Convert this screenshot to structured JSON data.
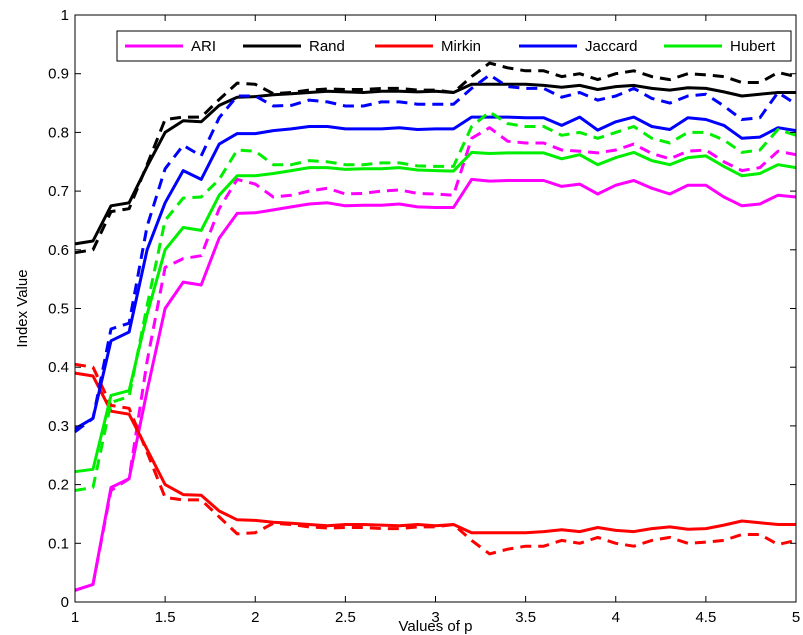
{
  "chart_data": {
    "type": "line",
    "xlabel": "Values of p",
    "ylabel": "Index Value",
    "xlim": [
      1,
      5
    ],
    "ylim": [
      0,
      1
    ],
    "x_ticks": [
      1,
      1.5,
      2,
      2.5,
      3,
      3.5,
      4,
      4.5,
      5
    ],
    "x_tick_labels": [
      "1",
      "1.5",
      "2",
      "2.5",
      "3",
      "3.5",
      "4",
      "4.5",
      "5"
    ],
    "y_ticks": [
      0,
      0.1,
      0.2,
      0.3,
      0.4,
      0.5,
      0.6,
      0.7,
      0.8,
      0.9,
      1
    ],
    "y_tick_labels": [
      "0",
      "0.1",
      "0.2",
      "0.3",
      "0.4",
      "0.5",
      "0.6",
      "0.7",
      "0.8",
      "0.9",
      "1"
    ],
    "grid": false,
    "legend_position": "top",
    "x": [
      1.0,
      1.1,
      1.2,
      1.3,
      1.4,
      1.5,
      1.6,
      1.7,
      1.8,
      1.9,
      2.0,
      2.1,
      2.2,
      2.3,
      2.4,
      2.5,
      2.6,
      2.7,
      2.8,
      2.9,
      3.0,
      3.1,
      3.2,
      3.3,
      3.4,
      3.5,
      3.6,
      3.7,
      3.8,
      3.9,
      4.0,
      4.1,
      4.2,
      4.3,
      4.4,
      4.5,
      4.6,
      4.7,
      4.8,
      4.9,
      5.0
    ],
    "series": [
      {
        "name": "ARI",
        "color": "#ff00ff",
        "style": "solid",
        "values": [
          0.02,
          0.03,
          0.195,
          0.21,
          0.36,
          0.5,
          0.545,
          0.54,
          0.62,
          0.662,
          0.663,
          0.668,
          0.673,
          0.678,
          0.68,
          0.675,
          0.676,
          0.676,
          0.678,
          0.673,
          0.672,
          0.672,
          0.72,
          0.717,
          0.718,
          0.718,
          0.718,
          0.708,
          0.712,
          0.695,
          0.71,
          0.718,
          0.705,
          0.695,
          0.71,
          0.71,
          0.69,
          0.675,
          0.678,
          0.693,
          0.69
        ]
      },
      {
        "name": "",
        "color": "#ff00ff",
        "style": "dashed",
        "values": [
          0.02,
          0.03,
          0.19,
          0.21,
          0.41,
          0.57,
          0.585,
          0.59,
          0.67,
          0.72,
          0.712,
          0.69,
          0.693,
          0.7,
          0.705,
          0.695,
          0.696,
          0.7,
          0.702,
          0.696,
          0.695,
          0.693,
          0.79,
          0.808,
          0.785,
          0.782,
          0.782,
          0.77,
          0.768,
          0.765,
          0.77,
          0.78,
          0.764,
          0.755,
          0.768,
          0.77,
          0.75,
          0.735,
          0.74,
          0.768,
          0.762
        ]
      },
      {
        "name": "Rand",
        "color": "#000000",
        "style": "solid",
        "values": [
          0.61,
          0.615,
          0.675,
          0.68,
          0.742,
          0.8,
          0.82,
          0.818,
          0.846,
          0.86,
          0.861,
          0.864,
          0.866,
          0.868,
          0.87,
          0.869,
          0.868,
          0.87,
          0.87,
          0.869,
          0.87,
          0.868,
          0.882,
          0.882,
          0.882,
          0.882,
          0.88,
          0.877,
          0.88,
          0.873,
          0.878,
          0.88,
          0.875,
          0.872,
          0.876,
          0.875,
          0.869,
          0.862,
          0.865,
          0.868,
          0.868
        ]
      },
      {
        "name": "",
        "color": "#000000",
        "style": "dashed",
        "values": [
          0.595,
          0.6,
          0.665,
          0.67,
          0.745,
          0.822,
          0.826,
          0.826,
          0.856,
          0.884,
          0.882,
          0.866,
          0.868,
          0.872,
          0.874,
          0.873,
          0.873,
          0.875,
          0.875,
          0.872,
          0.872,
          0.868,
          0.895,
          0.918,
          0.91,
          0.905,
          0.905,
          0.895,
          0.9,
          0.89,
          0.9,
          0.905,
          0.895,
          0.89,
          0.9,
          0.898,
          0.895,
          0.885,
          0.885,
          0.902,
          0.895
        ]
      },
      {
        "name": "Mirkin",
        "color": "#ff0000",
        "style": "solid",
        "values": [
          0.39,
          0.385,
          0.325,
          0.32,
          0.26,
          0.2,
          0.183,
          0.182,
          0.155,
          0.14,
          0.139,
          0.136,
          0.134,
          0.132,
          0.13,
          0.132,
          0.132,
          0.131,
          0.13,
          0.132,
          0.13,
          0.132,
          0.118,
          0.118,
          0.118,
          0.118,
          0.12,
          0.123,
          0.12,
          0.127,
          0.122,
          0.12,
          0.125,
          0.128,
          0.124,
          0.125,
          0.131,
          0.138,
          0.135,
          0.132,
          0.132
        ]
      },
      {
        "name": "",
        "color": "#ff0000",
        "style": "dashed",
        "values": [
          0.405,
          0.4,
          0.335,
          0.33,
          0.255,
          0.178,
          0.174,
          0.174,
          0.145,
          0.116,
          0.118,
          0.134,
          0.132,
          0.128,
          0.126,
          0.127,
          0.127,
          0.125,
          0.125,
          0.128,
          0.128,
          0.132,
          0.105,
          0.082,
          0.09,
          0.095,
          0.095,
          0.105,
          0.1,
          0.11,
          0.1,
          0.095,
          0.105,
          0.11,
          0.1,
          0.102,
          0.105,
          0.115,
          0.115,
          0.098,
          0.105
        ]
      },
      {
        "name": "Jaccard",
        "color": "#0000ff",
        "style": "solid",
        "values": [
          0.295,
          0.313,
          0.445,
          0.46,
          0.6,
          0.68,
          0.735,
          0.72,
          0.78,
          0.798,
          0.798,
          0.803,
          0.806,
          0.81,
          0.81,
          0.806,
          0.806,
          0.806,
          0.808,
          0.805,
          0.806,
          0.806,
          0.826,
          0.826,
          0.826,
          0.825,
          0.825,
          0.812,
          0.826,
          0.804,
          0.818,
          0.826,
          0.81,
          0.805,
          0.825,
          0.822,
          0.812,
          0.79,
          0.792,
          0.808,
          0.803
        ]
      },
      {
        "name": "",
        "color": "#0000ff",
        "style": "dashed",
        "values": [
          0.29,
          0.313,
          0.465,
          0.475,
          0.64,
          0.738,
          0.778,
          0.76,
          0.825,
          0.862,
          0.862,
          0.845,
          0.846,
          0.855,
          0.852,
          0.845,
          0.845,
          0.852,
          0.852,
          0.848,
          0.848,
          0.848,
          0.875,
          0.898,
          0.878,
          0.875,
          0.875,
          0.86,
          0.868,
          0.855,
          0.862,
          0.875,
          0.858,
          0.85,
          0.862,
          0.865,
          0.845,
          0.822,
          0.825,
          0.868,
          0.848
        ]
      },
      {
        "name": "Hubert",
        "color": "#00ee00",
        "style": "solid",
        "values": [
          0.222,
          0.226,
          0.352,
          0.36,
          0.49,
          0.6,
          0.638,
          0.633,
          0.693,
          0.726,
          0.726,
          0.73,
          0.735,
          0.74,
          0.74,
          0.737,
          0.738,
          0.738,
          0.74,
          0.736,
          0.735,
          0.734,
          0.766,
          0.764,
          0.765,
          0.765,
          0.765,
          0.755,
          0.762,
          0.745,
          0.757,
          0.766,
          0.752,
          0.745,
          0.757,
          0.76,
          0.742,
          0.726,
          0.73,
          0.745,
          0.74
        ]
      },
      {
        "name": "",
        "color": "#00ee00",
        "style": "dashed",
        "values": [
          0.19,
          0.195,
          0.34,
          0.35,
          0.505,
          0.65,
          0.688,
          0.69,
          0.72,
          0.77,
          0.768,
          0.745,
          0.745,
          0.752,
          0.75,
          0.745,
          0.745,
          0.748,
          0.748,
          0.743,
          0.742,
          0.742,
          0.81,
          0.835,
          0.815,
          0.81,
          0.81,
          0.795,
          0.8,
          0.79,
          0.8,
          0.81,
          0.79,
          0.782,
          0.8,
          0.8,
          0.787,
          0.766,
          0.77,
          0.805,
          0.795
        ]
      }
    ]
  }
}
